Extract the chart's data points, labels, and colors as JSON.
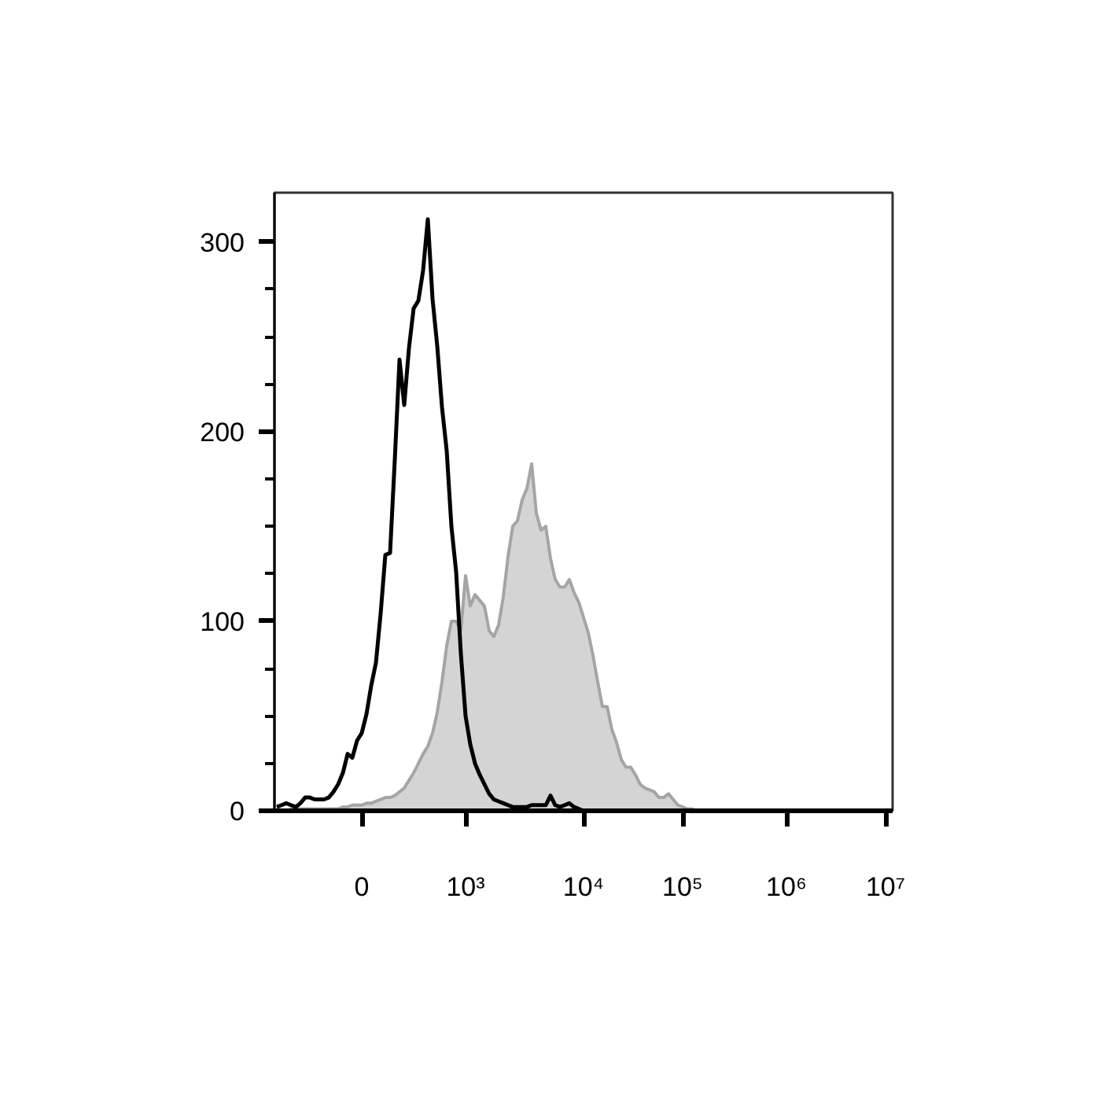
{
  "chart_data": {
    "type": "line",
    "categories": [
      null,
      null,
      null,
      null,
      null,
      null,
      null,
      null,
      null,
      null,
      null,
      null,
      null,
      null,
      null,
      null,
      null,
      null,
      "0",
      null,
      null,
      null,
      null,
      null,
      null,
      null,
      null,
      null,
      null,
      null,
      null,
      null,
      null,
      null,
      null,
      null,
      null,
      null,
      null,
      null,
      "10³",
      null,
      null,
      null,
      null,
      null,
      null,
      null,
      null,
      null,
      null,
      null,
      null,
      null,
      null,
      null,
      null,
      null,
      null,
      null,
      null,
      null,
      null,
      null,
      null,
      "10⁴",
      null,
      null,
      null,
      null,
      null,
      null,
      null,
      null,
      null,
      null,
      null,
      null,
      null,
      null,
      null,
      null,
      null,
      null,
      null,
      null,
      "10⁵",
      null,
      null,
      null,
      null,
      null,
      null,
      null,
      null,
      null,
      null,
      null,
      null,
      null,
      null,
      null,
      null,
      null,
      null,
      null,
      null,
      null,
      "10⁶",
      null,
      null,
      null,
      null,
      null,
      null,
      null,
      null,
      null,
      null,
      null,
      null,
      null,
      null,
      null,
      null,
      null,
      null,
      null,
      null,
      "10⁷",
      null
    ],
    "ylim": [
      0,
      326
    ],
    "yticks": [
      0,
      100,
      200,
      300,
      {
        "value": 25,
        "label": null
      },
      {
        "value": 50,
        "label": null
      },
      {
        "value": 75,
        "label": null
      },
      {
        "value": 125,
        "label": null
      },
      {
        "value": 150,
        "label": null
      },
      {
        "value": 175,
        "label": null
      },
      {
        "value": 225,
        "label": null
      },
      {
        "value": 250,
        "label": null
      },
      {
        "value": 275,
        "label": null
      }
    ],
    "series": [
      {
        "type": "area",
        "color": "#d4d4d4",
        "values": [
          null,
          null,
          null,
          1,
          1,
          1,
          1,
          1,
          1,
          1,
          1,
          1,
          1,
          1,
          2,
          2,
          3,
          3,
          3,
          4,
          4,
          5,
          6,
          7,
          7,
          8,
          10,
          12,
          16,
          20,
          25,
          30,
          34,
          41,
          52,
          68,
          87,
          100,
          100,
          95,
          124,
          108,
          114,
          111,
          108,
          95,
          92,
          98,
          113,
          134,
          150,
          153,
          164,
          170,
          183,
          157,
          148,
          150,
          133,
          122,
          118,
          118,
          122,
          115,
          110,
          102,
          94,
          82,
          68,
          55,
          55,
          43,
          36,
          27,
          23,
          23,
          19,
          14,
          12,
          11,
          10,
          7,
          7,
          9,
          6,
          3,
          2,
          1,
          1,
          0,
          null,
          null,
          null,
          null,
          null,
          null,
          null,
          null,
          null,
          null,
          null,
          null,
          null,
          null,
          null,
          null,
          null,
          null,
          null,
          null,
          null,
          null,
          null,
          null,
          null,
          null,
          null,
          null,
          null,
          null,
          null,
          null,
          null,
          null,
          null,
          null,
          null,
          null,
          null,
          null,
          null
        ]
      },
      {
        "color": "#000000",
        "values": [
          2,
          3,
          4,
          3,
          2,
          4,
          7,
          7,
          6,
          6,
          6,
          7,
          10,
          14,
          20,
          30,
          28,
          37,
          41,
          51,
          66,
          78,
          104,
          135,
          136,
          185,
          238,
          214,
          244,
          265,
          269,
          285,
          312,
          270,
          245,
          213,
          190,
          150,
          126,
          83,
          50,
          35,
          25,
          19,
          14,
          9,
          6,
          5,
          4,
          3,
          2,
          2,
          2,
          2,
          3,
          3,
          3,
          3,
          8,
          3,
          2,
          3,
          4,
          2,
          1,
          0,
          0,
          null,
          null,
          null,
          null,
          null,
          null,
          null,
          null,
          null,
          null,
          null,
          null,
          null,
          null,
          null,
          null,
          null,
          null,
          null,
          null,
          null,
          null,
          null,
          null,
          null,
          null,
          null,
          null,
          null,
          null,
          null,
          null,
          null,
          null,
          null,
          null,
          null,
          null,
          null,
          null,
          null,
          null,
          null,
          null,
          null,
          null,
          null,
          null,
          null,
          null,
          null,
          null,
          null,
          null,
          null,
          null,
          null,
          null,
          null,
          null,
          null,
          null,
          null,
          null
        ]
      }
    ]
  }
}
